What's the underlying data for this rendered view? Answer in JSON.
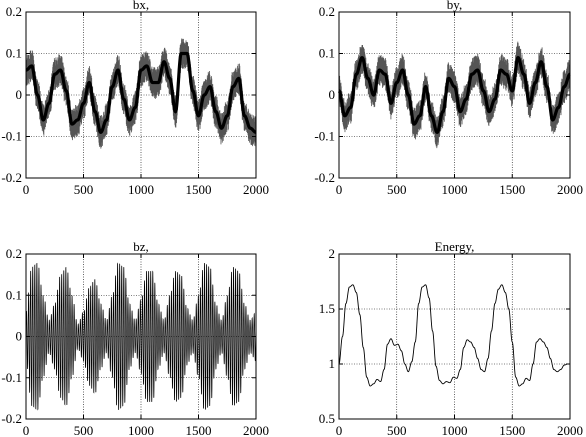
{
  "chart_data": [
    {
      "type": "line",
      "title": "bx,",
      "xlabel": "",
      "ylabel": "",
      "xlim": [
        0,
        2000
      ],
      "ylim": [
        -0.2,
        0.2
      ],
      "xticks": [
        0,
        500,
        1000,
        1500,
        2000
      ],
      "yticks": [
        -0.2,
        -0.1,
        0,
        0.1,
        0.2
      ],
      "xtick_labels": [
        "0",
        "500",
        "1000",
        "1500",
        "2000"
      ],
      "ytick_labels": [
        "-0.2",
        "-0.1",
        "0",
        "0.1",
        "0.2"
      ],
      "grid": true,
      "series": [
        {
          "x": [
            0,
            50,
            100,
            150,
            200,
            250,
            300,
            350,
            400,
            450,
            500,
            550,
            600,
            650,
            700,
            750,
            800,
            850,
            900,
            950,
            1000,
            1050,
            1100,
            1150,
            1200,
            1250,
            1300,
            1350,
            1400,
            1450,
            1500,
            1550,
            1600,
            1650,
            1700,
            1750,
            1800,
            1850,
            1900,
            1950,
            2000
          ],
          "y": [
            0.06,
            0.07,
            0.0,
            -0.06,
            -0.02,
            0.05,
            0.06,
            0.01,
            -0.07,
            -0.06,
            -0.02,
            0.03,
            -0.04,
            -0.09,
            -0.06,
            0.02,
            0.06,
            -0.01,
            -0.06,
            -0.03,
            0.06,
            0.07,
            0.03,
            0.03,
            0.08,
            0.04,
            -0.04,
            0.1,
            0.1,
            0.01,
            -0.05,
            0.0,
            0.02,
            -0.04,
            -0.08,
            -0.05,
            0.02,
            0.04,
            -0.05,
            -0.08,
            -0.09
          ],
          "envelope": 0.04
        }
      ]
    },
    {
      "type": "line",
      "title": "by,",
      "xlabel": "",
      "ylabel": "",
      "xlim": [
        0,
        2000
      ],
      "ylim": [
        -0.2,
        0.2
      ],
      "xticks": [
        0,
        500,
        1000,
        1500,
        2000
      ],
      "yticks": [
        -0.2,
        -0.1,
        0,
        0.1,
        0.2
      ],
      "xtick_labels": [
        "0",
        "500",
        "1000",
        "1500",
        "2000"
      ],
      "ytick_labels": [
        "-0.2",
        "-0.1",
        "0",
        "0.1",
        "0.2"
      ],
      "grid": true,
      "series": [
        {
          "x": [
            0,
            50,
            100,
            150,
            200,
            250,
            300,
            350,
            400,
            450,
            500,
            550,
            600,
            650,
            700,
            750,
            800,
            850,
            900,
            950,
            1000,
            1050,
            1100,
            1150,
            1200,
            1250,
            1300,
            1350,
            1400,
            1450,
            1500,
            1550,
            1600,
            1650,
            1700,
            1750,
            1800,
            1850,
            1900,
            1950,
            2000
          ],
          "y": [
            0.01,
            -0.05,
            -0.03,
            0.05,
            0.09,
            0.04,
            0.0,
            0.06,
            0.05,
            -0.02,
            0.03,
            0.06,
            0.0,
            -0.07,
            -0.05,
            0.02,
            -0.05,
            -0.09,
            -0.04,
            0.04,
            0.02,
            -0.04,
            -0.01,
            0.05,
            0.06,
            0.01,
            -0.04,
            -0.01,
            0.06,
            0.05,
            0.01,
            0.09,
            0.05,
            -0.02,
            0.03,
            0.08,
            0.02,
            -0.06,
            -0.03,
            0.02,
            0.05
          ],
          "envelope": 0.04
        }
      ]
    },
    {
      "type": "line",
      "title": "bz,",
      "xlabel": "",
      "ylabel": "",
      "xlim": [
        0,
        2000
      ],
      "ylim": [
        -0.2,
        0.2
      ],
      "xticks": [
        0,
        500,
        1000,
        1500,
        2000
      ],
      "yticks": [
        -0.2,
        -0.1,
        0,
        0.1,
        0.2
      ],
      "xtick_labels": [
        "0",
        "500",
        "1000",
        "1500",
        "2000"
      ],
      "ytick_labels": [
        "-0.2",
        "-0.1",
        "0",
        "0.1",
        "0.2"
      ],
      "grid": true,
      "series": [
        {
          "x": [
            0,
            50,
            100,
            150,
            200,
            250,
            300,
            350,
            400,
            450,
            500,
            550,
            600,
            650,
            700,
            750,
            800,
            850,
            900,
            950,
            1000,
            1050,
            1100,
            1150,
            1200,
            1250,
            1300,
            1350,
            1400,
            1450,
            1500,
            1550,
            1600,
            1650,
            1700,
            1750,
            1800,
            1850,
            1900,
            1950,
            2000
          ],
          "y": [
            0.06,
            0.17,
            0.18,
            0.1,
            0.04,
            0.08,
            0.15,
            0.17,
            0.1,
            0.03,
            0.06,
            0.12,
            0.14,
            0.08,
            0.04,
            0.1,
            0.18,
            0.17,
            0.08,
            0.04,
            0.09,
            0.16,
            0.16,
            0.08,
            0.04,
            0.1,
            0.16,
            0.15,
            0.07,
            0.04,
            0.1,
            0.18,
            0.17,
            0.08,
            0.04,
            0.1,
            0.17,
            0.16,
            0.08,
            0.04,
            0.06
          ],
          "oscillation_period": 18
        }
      ]
    },
    {
      "type": "line",
      "title": "Energy,",
      "xlabel": "",
      "ylabel": "",
      "xlim": [
        0,
        2000
      ],
      "ylim": [
        0.5,
        2
      ],
      "xticks": [
        0,
        500,
        1000,
        1500,
        2000
      ],
      "yticks": [
        0.5,
        1,
        1.5,
        2
      ],
      "xtick_labels": [
        "0",
        "500",
        "1000",
        "1500",
        "2000"
      ],
      "ytick_labels": [
        "0.5",
        "1",
        "1.5",
        "2"
      ],
      "grid": true,
      "series": [
        {
          "x": [
            0,
            30,
            60,
            90,
            120,
            150,
            180,
            210,
            240,
            270,
            300,
            330,
            360,
            390,
            420,
            450,
            480,
            510,
            540,
            570,
            600,
            630,
            660,
            690,
            720,
            750,
            780,
            810,
            840,
            870,
            900,
            930,
            960,
            990,
            1020,
            1050,
            1080,
            1110,
            1140,
            1170,
            1200,
            1230,
            1260,
            1290,
            1320,
            1350,
            1380,
            1410,
            1440,
            1470,
            1500,
            1530,
            1560,
            1590,
            1620,
            1650,
            1680,
            1710,
            1740,
            1770,
            1800,
            1830,
            1860,
            1890,
            1920,
            1950,
            1980,
            2000
          ],
          "y": [
            1.0,
            1.25,
            1.55,
            1.7,
            1.72,
            1.65,
            1.45,
            1.15,
            0.88,
            0.8,
            0.82,
            0.86,
            0.84,
            0.95,
            1.18,
            1.23,
            1.17,
            1.18,
            1.12,
            1.0,
            0.93,
            1.02,
            1.2,
            1.55,
            1.7,
            1.72,
            1.6,
            1.3,
            0.98,
            0.85,
            0.82,
            0.84,
            0.83,
            0.88,
            0.87,
            0.95,
            1.15,
            1.22,
            1.2,
            1.15,
            1.05,
            0.95,
            0.93,
            1.05,
            1.3,
            1.55,
            1.68,
            1.72,
            1.65,
            1.5,
            1.2,
            0.88,
            0.8,
            0.82,
            0.87,
            0.85,
            1.0,
            1.2,
            1.23,
            1.2,
            1.15,
            1.05,
            0.95,
            0.93,
            0.95,
            0.99,
            1.0,
            1.0
          ]
        }
      ]
    }
  ]
}
